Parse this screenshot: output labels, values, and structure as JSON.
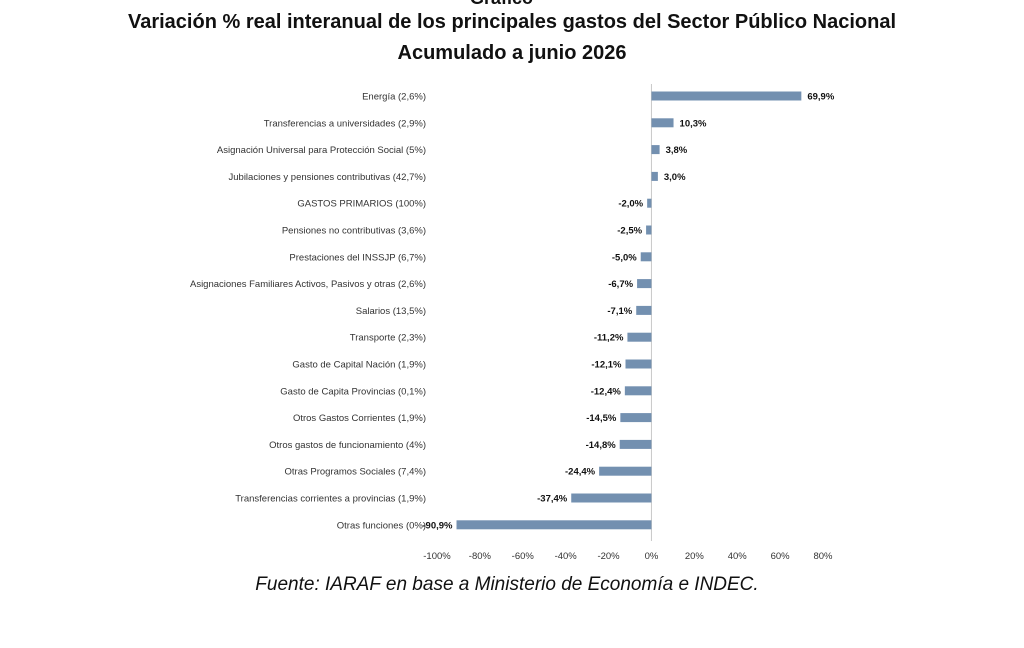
{
  "header": {
    "title_stub": "Gráfico",
    "title_line1": "Variación % real interanual de los principales gastos del Sector Público Nacional",
    "title_line2": "Acumulado a junio 2026"
  },
  "footer": {
    "source": "Fuente: IARAF en base a Ministerio de Economía e INDEC."
  },
  "colors": {
    "bar": "#7390b0",
    "axis": "#c8c8c8",
    "text": "#111111"
  },
  "chart_data": {
    "type": "bar",
    "orientation": "horizontal",
    "categories": [
      "Energía (2,6%)",
      "Transferencias a universidades (2,9%)",
      "Asignación Universal para Protección Social (5%)",
      "Jubilaciones y pensiones contributivas (42,7%)",
      "GASTOS PRIMARIOS (100%)",
      "Pensiones no contributivas (3,6%)",
      "Prestaciones del INSSJP (6,7%)",
      "Asignaciones Familiares Activos, Pasivos y otras (2,6%)",
      "Salarios (13,5%)",
      "Transporte (2,3%)",
      "Gasto de Capital Nación (1,9%)",
      "Gasto de Capita Provincias (0,1%)",
      "Otros Gastos Corrientes     (1,9%)",
      "Otros gastos de funcionamiento (4%)",
      "Otras Programos Sociales  (7,4%)",
      "Transferencias corrientes a provincias (1,9%)",
      "Otras funciones    (0%)"
    ],
    "values": [
      69.9,
      10.3,
      3.8,
      3.0,
      -2.0,
      -2.5,
      -5.0,
      -6.7,
      -7.1,
      -11.2,
      -12.1,
      -12.4,
      -14.5,
      -14.8,
      -24.4,
      -37.4,
      -90.9
    ],
    "value_labels": [
      "69,9%",
      "10,3%",
      "3,8%",
      "3,0%",
      "-2,0%",
      "-2,5%",
      "-5,0%",
      "-6,7%",
      "-7,1%",
      "-11,2%",
      "-12,1%",
      "-12,4%",
      "-14,5%",
      "-14,8%",
      "-24,4%",
      "-37,4%",
      "-90,9%"
    ],
    "xlim": [
      -100,
      80
    ],
    "xticks": [
      -100,
      -80,
      -60,
      -40,
      -20,
      0,
      20,
      40,
      60,
      80
    ],
    "xtick_labels": [
      "-100%",
      "-80%",
      "-60%",
      "-40%",
      "-20%",
      "0%",
      "20%",
      "40%",
      "60%",
      "80%"
    ],
    "title": "Variación % real interanual de los principales gastos del Sector Público Nacional",
    "subtitle": "Acumulado a junio 2026",
    "xlabel": "",
    "ylabel": "",
    "grid": false,
    "legend": "none"
  }
}
